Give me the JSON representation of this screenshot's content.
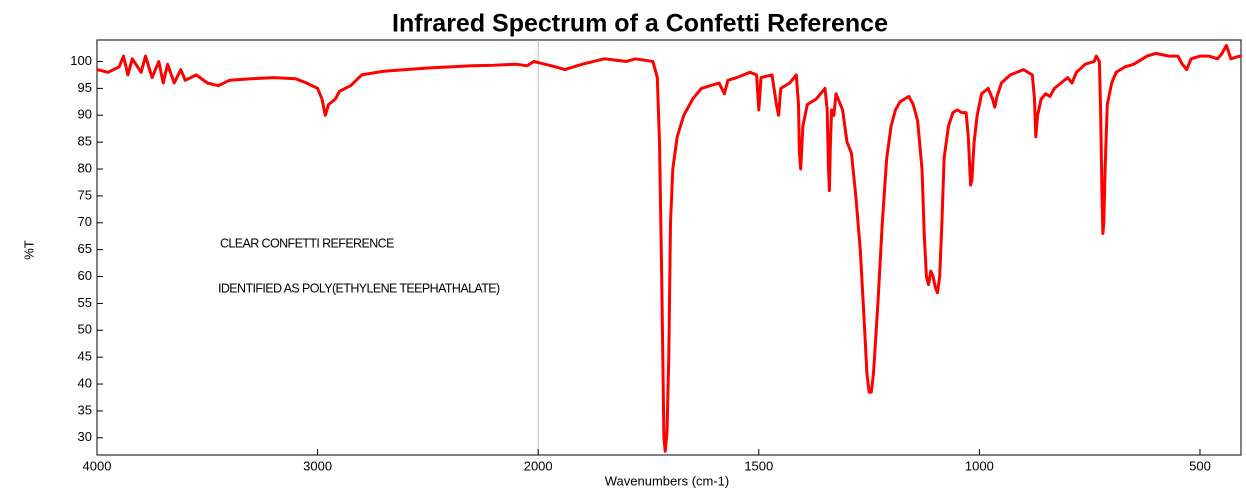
{
  "chart_data": {
    "type": "line",
    "title": "Infrared Spectrum of a Confetti Reference",
    "x_label": "Wavenumbers (cm-1)",
    "y_label": "%T",
    "annotations": [
      "CLEAR CONFETTI REFERENCE",
      "IDENTIFIED AS POLY(ETHYLENE TEEPHATHALATE)"
    ],
    "color": "#ff0000",
    "xlim": [
      4000,
      407
    ],
    "xticks": [
      4000,
      3000,
      2000,
      1500,
      1000,
      500
    ],
    "x_scale_break": 2000,
    "x_break_ratio": 2,
    "ylim": [
      26.8,
      104
    ],
    "yticks": [
      30,
      35,
      40,
      45,
      50,
      55,
      60,
      65,
      70,
      75,
      80,
      85,
      90,
      95,
      100
    ],
    "x": [
      4000,
      3950,
      3900,
      3880,
      3860,
      3840,
      3800,
      3780,
      3750,
      3720,
      3700,
      3680,
      3650,
      3620,
      3600,
      3550,
      3500,
      3450,
      3400,
      3300,
      3200,
      3100,
      3050,
      3000,
      2980,
      2965,
      2950,
      2920,
      2900,
      2850,
      2800,
      2700,
      2600,
      2500,
      2400,
      2300,
      2200,
      2100,
      2050,
      2020,
      2000,
      1960,
      1940,
      1900,
      1850,
      1800,
      1780,
      1740,
      1730,
      1725,
      1720,
      1715,
      1712,
      1708,
      1704,
      1700,
      1695,
      1685,
      1670,
      1650,
      1630,
      1610,
      1590,
      1578,
      1570,
      1550,
      1520,
      1505,
      1500,
      1495,
      1470,
      1460,
      1455,
      1450,
      1430,
      1415,
      1410,
      1408,
      1405,
      1400,
      1390,
      1370,
      1350,
      1345,
      1342,
      1340,
      1338,
      1335,
      1330,
      1325,
      1320,
      1310,
      1300,
      1290,
      1280,
      1270,
      1260,
      1255,
      1250,
      1245,
      1240,
      1230,
      1220,
      1210,
      1200,
      1190,
      1180,
      1170,
      1160,
      1150,
      1140,
      1130,
      1125,
      1120,
      1115,
      1110,
      1105,
      1100,
      1095,
      1090,
      1085,
      1080,
      1070,
      1060,
      1050,
      1040,
      1030,
      1025,
      1020,
      1017,
      1012,
      1005,
      995,
      980,
      970,
      965,
      960,
      950,
      930,
      900,
      880,
      875,
      872,
      868,
      860,
      850,
      840,
      830,
      800,
      790,
      780,
      760,
      740,
      735,
      728,
      725,
      722,
      720,
      718,
      715,
      710,
      700,
      690,
      670,
      650,
      620,
      600,
      570,
      550,
      540,
      530,
      520,
      500,
      480,
      460,
      450,
      440,
      430,
      410,
      407
    ],
    "values": [
      98.5,
      98,
      99,
      101,
      97.5,
      100.5,
      98,
      101,
      97,
      100,
      96,
      99.5,
      96,
      98.5,
      96.5,
      97.5,
      96,
      95.5,
      96.5,
      96.8,
      97,
      96.8,
      96,
      95,
      93,
      90,
      92,
      93,
      94.5,
      95.5,
      97.5,
      98.2,
      98.5,
      98.8,
      99,
      99.2,
      99.3,
      99.5,
      99.2,
      100,
      99.8,
      99,
      98.5,
      99.5,
      100.5,
      100,
      100.5,
      100,
      97,
      85,
      60,
      30,
      27.5,
      31,
      45,
      70,
      80,
      86,
      90,
      93,
      95,
      95.5,
      96,
      94,
      96.5,
      97,
      98,
      97.5,
      91,
      97,
      97.5,
      92,
      90,
      95,
      96,
      97.5,
      92,
      83,
      80,
      88,
      92,
      93,
      95,
      91,
      80,
      76,
      84,
      91,
      90,
      94,
      93,
      91,
      85,
      83,
      75,
      65,
      50,
      42,
      38.5,
      38.5,
      42,
      55,
      70,
      82,
      88,
      91,
      92.5,
      93,
      93.5,
      92,
      89,
      80,
      68,
      60,
      58.5,
      61,
      60,
      58,
      57,
      60,
      70,
      82,
      88,
      90.5,
      91,
      90.5,
      90.5,
      86,
      77,
      78,
      85,
      90,
      94,
      95,
      93,
      91.5,
      93.5,
      96,
      97.5,
      98.5,
      97.5,
      93,
      86,
      90,
      93,
      94,
      93.5,
      95,
      97,
      96,
      98,
      99.5,
      100,
      101,
      100,
      90,
      75,
      68,
      70,
      80,
      92,
      96,
      98,
      99,
      99.5,
      101,
      101.5,
      101,
      101,
      99.5,
      98.5,
      100.5,
      101,
      101,
      100.5,
      101.5,
      103,
      100.5,
      101,
      101
    ]
  }
}
